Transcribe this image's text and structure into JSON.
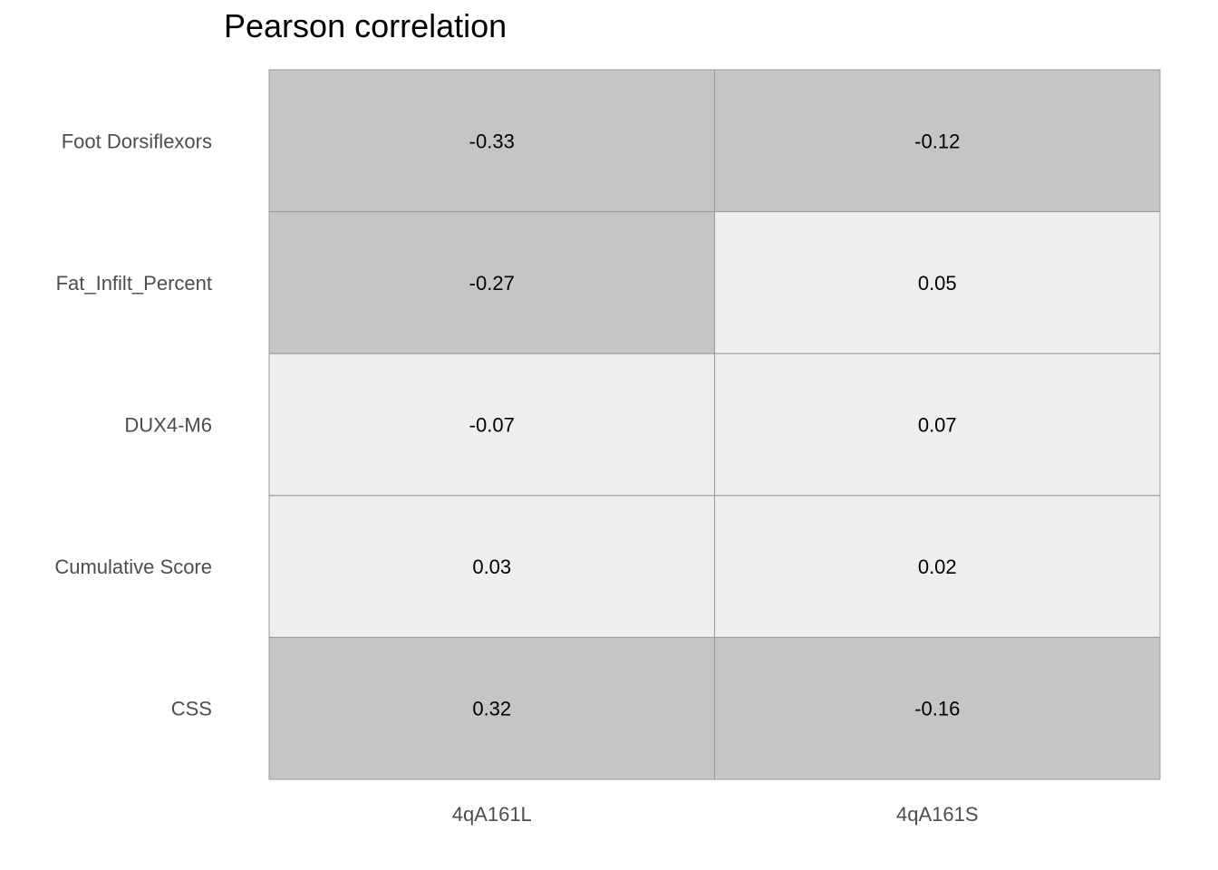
{
  "chart_data": {
    "type": "heatmap",
    "title": "Pearson correlation",
    "xlabel": "",
    "ylabel": "",
    "columns": [
      "4qA161L",
      "4qA161S"
    ],
    "rows": [
      "Foot Dorsiflexors",
      "Fat_Infilt_Percent",
      "DUX4-M6",
      "Cumulative Score",
      "CSS"
    ],
    "values": [
      [
        -0.33,
        -0.12
      ],
      [
        -0.27,
        0.05
      ],
      [
        -0.07,
        0.07
      ],
      [
        0.03,
        0.02
      ],
      [
        0.32,
        -0.16
      ]
    ],
    "value_labels": [
      [
        "-0.33",
        "-0.12"
      ],
      [
        "-0.27",
        "0.05"
      ],
      [
        "-0.07",
        "0.07"
      ],
      [
        "0.03",
        "0.02"
      ],
      [
        "0.32",
        "-0.16"
      ]
    ],
    "color_strong": "#c5c5c5",
    "color_weak": "#eeeeee",
    "strong_threshold": 0.1,
    "grid_color": "#999999",
    "label_color": "#4d4d4d",
    "value_color": "#000000",
    "legend": "none"
  }
}
